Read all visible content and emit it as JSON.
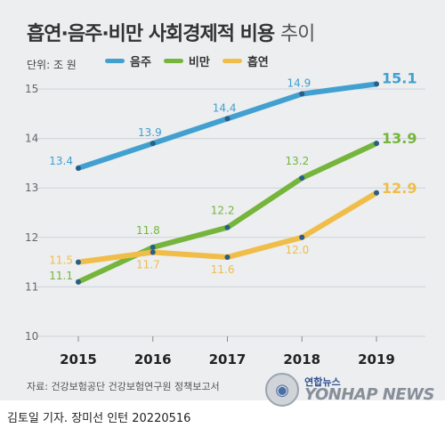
{
  "title_main": "흡연·음주·비만 사회경제적 비용",
  "title_suffix": "추이",
  "unit_label": "단위: 조 원",
  "source": "자료: 건강보험공단 건강보험연구원 정책보고서",
  "credit": "김토일 기자. 장미선 인턴  20220516",
  "logo": {
    "korean": "연합뉴스",
    "english": "YONHAP NEWS",
    "icon": "yonhap-logo-icon"
  },
  "colors": {
    "drinking": "#41a0cf",
    "obesity": "#75b53b",
    "smoking": "#f0bd49",
    "background": "#eceef0",
    "grid": "#cfd3d7"
  },
  "chart_data": {
    "type": "line",
    "x": [
      "2015",
      "2016",
      "2017",
      "2018",
      "2019"
    ],
    "ylim": [
      10,
      15
    ],
    "yticks": [
      "10",
      "11",
      "12",
      "13",
      "14",
      "15"
    ],
    "grid": true,
    "legend": "top",
    "series": [
      {
        "name": "음주",
        "values": [
          13.4,
          13.9,
          14.4,
          14.9,
          15.1
        ],
        "labels": [
          "13.4",
          "13.9",
          "14.4",
          "14.9",
          "15.1"
        ]
      },
      {
        "name": "비만",
        "values": [
          11.1,
          11.8,
          12.2,
          13.2,
          13.9
        ],
        "labels": [
          "11.1",
          "11.8",
          "12.2",
          "13.2",
          "13.9"
        ]
      },
      {
        "name": "흡연",
        "values": [
          11.5,
          11.7,
          11.6,
          12.0,
          12.9
        ],
        "labels": [
          "11.5",
          "11.7",
          "11.6",
          "12.0",
          "12.9"
        ]
      }
    ]
  }
}
